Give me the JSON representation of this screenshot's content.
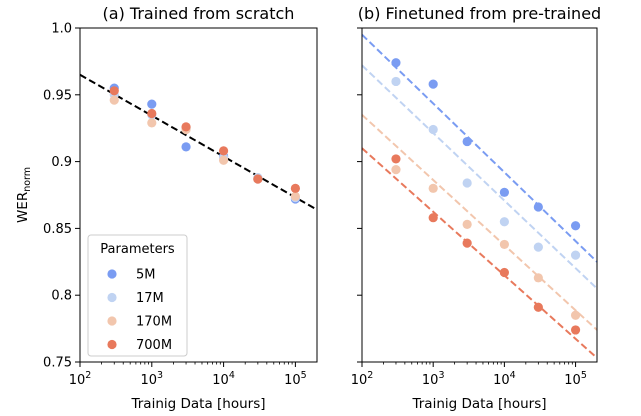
{
  "chart_data": [
    {
      "type": "scatter",
      "title": "(a) Trained from scratch",
      "xlabel": "Trainig Data [hours]",
      "ylabel": "WER",
      "ylabel_sub": "norm",
      "xscale": "log",
      "xlim": [
        100,
        200000
      ],
      "ylim": [
        0.75,
        1.0
      ],
      "x_ticks": [
        {
          "v": 100,
          "b": "10",
          "e": "2"
        },
        {
          "v": 1000,
          "b": "10",
          "e": "3"
        },
        {
          "v": 10000,
          "b": "10",
          "e": "4"
        },
        {
          "v": 100000,
          "b": "10",
          "e": "5"
        }
      ],
      "y_ticks": [
        {
          "v": 0.75,
          "t": "0.75"
        },
        {
          "v": 0.8,
          "t": "0.8"
        },
        {
          "v": 0.85,
          "t": "0.85"
        },
        {
          "v": 0.9,
          "t": "0.9"
        },
        {
          "v": 0.95,
          "t": "0.95"
        },
        {
          "v": 1.0,
          "t": "1.0"
        }
      ],
      "series": [
        {
          "name": "5M",
          "color": "#7a9cf2",
          "x": [
            300,
            1000,
            3000,
            10000,
            30000,
            100000
          ],
          "y": [
            0.955,
            0.943,
            0.911,
            0.904,
            0.887,
            0.872
          ]
        },
        {
          "name": "17M",
          "color": "#c0d3f2",
          "x": [
            300,
            1000,
            3000,
            10000,
            30000,
            100000
          ],
          "y": [
            0.95,
            0.935,
            0.925,
            0.903,
            0.888,
            0.873
          ]
        },
        {
          "name": "170M",
          "color": "#f2c6ad",
          "x": [
            300,
            1000,
            3000,
            10000,
            30000,
            100000
          ],
          "y": [
            0.946,
            0.929,
            0.924,
            0.901,
            0.887,
            0.874
          ]
        },
        {
          "name": "700M",
          "color": "#e8795c",
          "x": [
            300,
            1000,
            3000,
            10000,
            30000,
            100000
          ],
          "y": [
            0.953,
            0.936,
            0.926,
            0.908,
            0.887,
            0.88
          ]
        }
      ],
      "fit_lines": [
        {
          "color": "#000000",
          "x": [
            100,
            200000
          ],
          "y": [
            0.965,
            0.864
          ]
        }
      ],
      "legend": {
        "title": "Parameters",
        "position": "lower-left",
        "entries": [
          {
            "label": "5M",
            "color": "#7a9cf2"
          },
          {
            "label": "17M",
            "color": "#c0d3f2"
          },
          {
            "label": "170M",
            "color": "#f2c6ad"
          },
          {
            "label": "700M",
            "color": "#e8795c"
          }
        ]
      }
    },
    {
      "type": "scatter",
      "title": "(b) Finetuned from pre-trained",
      "xlabel": "Trainig Data [hours]",
      "xscale": "log",
      "xlim": [
        100,
        200000
      ],
      "ylim": [
        0.75,
        1.0
      ],
      "x_ticks": [
        {
          "v": 100,
          "b": "10",
          "e": "2"
        },
        {
          "v": 1000,
          "b": "10",
          "e": "3"
        },
        {
          "v": 10000,
          "b": "10",
          "e": "4"
        },
        {
          "v": 100000,
          "b": "10",
          "e": "5"
        }
      ],
      "series": [
        {
          "name": "5M",
          "color": "#7a9cf2",
          "x": [
            300,
            1000,
            3000,
            10000,
            30000,
            100000
          ],
          "y": [
            0.974,
            0.958,
            0.915,
            0.877,
            0.866,
            0.852
          ]
        },
        {
          "name": "17M",
          "color": "#c0d3f2",
          "x": [
            300,
            1000,
            3000,
            10000,
            30000,
            100000
          ],
          "y": [
            0.96,
            0.924,
            0.884,
            0.855,
            0.836,
            0.83
          ]
        },
        {
          "name": "170M",
          "color": "#f2c6ad",
          "x": [
            300,
            1000,
            3000,
            10000,
            30000,
            100000
          ],
          "y": [
            0.894,
            0.88,
            0.853,
            0.838,
            0.813,
            0.785
          ]
        },
        {
          "name": "700M",
          "color": "#e8795c",
          "x": [
            300,
            1000,
            3000,
            10000,
            30000,
            100000
          ],
          "y": [
            0.902,
            0.858,
            0.839,
            0.817,
            0.791,
            0.774
          ]
        }
      ],
      "fit_lines": [
        {
          "color": "#7a9cf2",
          "x": [
            100,
            200000
          ],
          "y": [
            0.995,
            0.825
          ]
        },
        {
          "color": "#c0d3f2",
          "x": [
            100,
            200000
          ],
          "y": [
            0.972,
            0.805
          ]
        },
        {
          "color": "#f2c6ad",
          "x": [
            100,
            200000
          ],
          "y": [
            0.935,
            0.774
          ]
        },
        {
          "color": "#e8795c",
          "x": [
            100,
            200000
          ],
          "y": [
            0.91,
            0.753
          ]
        }
      ]
    }
  ]
}
